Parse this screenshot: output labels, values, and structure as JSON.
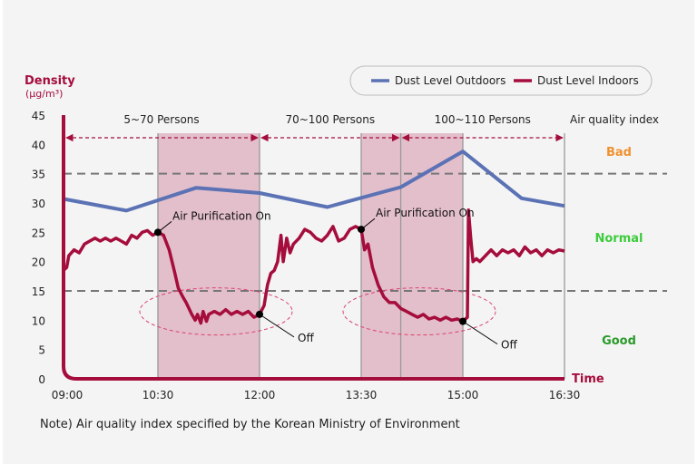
{
  "chart_data": {
    "type": "line",
    "ylabel": "Density",
    "yunit": "(µg/m³)",
    "xlabel": "Time",
    "ylim": [
      0,
      45
    ],
    "yticks": [
      0,
      5,
      10,
      15,
      20,
      25,
      30,
      35,
      40,
      45
    ],
    "xticks": [
      "09:00",
      "10:30",
      "12:00",
      "13:30",
      "15:00",
      "16:30"
    ],
    "legend": {
      "position": "top-right"
    },
    "series": [
      {
        "name": "Dust Level Outdoors",
        "color": "#5b72b5",
        "points": [
          [
            "09:00",
            30.7
          ],
          [
            "10:00",
            28.7
          ],
          [
            "11:04",
            32.6
          ],
          [
            "12:00",
            31.7
          ],
          [
            "13:00",
            29.3
          ],
          [
            "14:05",
            32.7
          ],
          [
            "15:00",
            38.8
          ],
          [
            "15:52",
            30.8
          ],
          [
            "16:30",
            29.5
          ]
        ]
      },
      {
        "name": "Dust Level Indoors",
        "color": "#a50d3c",
        "points": [
          [
            "09:00",
            18.5
          ],
          [
            "09:03",
            19
          ],
          [
            "09:05",
            21
          ],
          [
            "09:10",
            22
          ],
          [
            "09:15",
            21.5
          ],
          [
            "09:20",
            23
          ],
          [
            "09:25",
            23.5
          ],
          [
            "09:30",
            24
          ],
          [
            "09:35",
            23.5
          ],
          [
            "09:40",
            24
          ],
          [
            "09:45",
            23.5
          ],
          [
            "09:50",
            24
          ],
          [
            "09:55",
            23.5
          ],
          [
            "10:00",
            23
          ],
          [
            "10:05",
            24.5
          ],
          [
            "10:10",
            24
          ],
          [
            "10:15",
            25
          ],
          [
            "10:20",
            25.3
          ],
          [
            "10:25",
            24.5
          ],
          [
            "10:30",
            25
          ],
          [
            "10:35",
            24.5
          ],
          [
            "10:40",
            22
          ],
          [
            "10:45",
            18
          ],
          [
            "10:48",
            15.5
          ],
          [
            "10:52",
            14
          ],
          [
            "10:55",
            13
          ],
          [
            "11:00",
            11
          ],
          [
            "11:03",
            10
          ],
          [
            "11:05",
            11
          ],
          [
            "11:08",
            9.5
          ],
          [
            "11:10",
            11.5
          ],
          [
            "11:13",
            9.8
          ],
          [
            "11:15",
            11
          ],
          [
            "11:20",
            11.5
          ],
          [
            "11:25",
            11
          ],
          [
            "11:30",
            11.8
          ],
          [
            "11:35",
            11
          ],
          [
            "11:40",
            11.5
          ],
          [
            "11:45",
            11
          ],
          [
            "11:50",
            11.5
          ],
          [
            "11:55",
            10.5
          ],
          [
            "12:00",
            11
          ],
          [
            "12:04",
            12.5
          ],
          [
            "12:07",
            16
          ],
          [
            "12:10",
            18
          ],
          [
            "12:13",
            18.5
          ],
          [
            "12:16",
            20
          ],
          [
            "12:19",
            24.5
          ],
          [
            "12:21",
            20
          ],
          [
            "12:24",
            24
          ],
          [
            "12:27",
            21.5
          ],
          [
            "12:30",
            23
          ],
          [
            "12:35",
            24
          ],
          [
            "12:40",
            25.5
          ],
          [
            "12:45",
            25
          ],
          [
            "12:50",
            24
          ],
          [
            "12:55",
            23.5
          ],
          [
            "13:00",
            24.5
          ],
          [
            "13:05",
            26
          ],
          [
            "13:10",
            23.5
          ],
          [
            "13:15",
            24
          ],
          [
            "13:20",
            25.5
          ],
          [
            "13:25",
            26
          ],
          [
            "13:30",
            25.5
          ],
          [
            "13:33",
            22
          ],
          [
            "13:36",
            23
          ],
          [
            "13:40",
            19
          ],
          [
            "13:45",
            16
          ],
          [
            "13:50",
            14
          ],
          [
            "13:55",
            13
          ],
          [
            "14:00",
            13
          ],
          [
            "14:05",
            12
          ],
          [
            "14:10",
            11.5
          ],
          [
            "14:15",
            11
          ],
          [
            "14:20",
            10.5
          ],
          [
            "14:25",
            11
          ],
          [
            "14:30",
            10.2
          ],
          [
            "14:35",
            10.5
          ],
          [
            "14:40",
            10
          ],
          [
            "14:45",
            10.5
          ],
          [
            "14:50",
            10
          ],
          [
            "14:55",
            10.2
          ],
          [
            "15:00",
            9.8
          ],
          [
            "15:04",
            10.5
          ],
          [
            "15:05",
            28.8
          ],
          [
            "15:07",
            24
          ],
          [
            "15:09",
            20
          ],
          [
            "15:12",
            20.5
          ],
          [
            "15:15",
            20
          ],
          [
            "15:20",
            21
          ],
          [
            "15:25",
            22
          ],
          [
            "15:30",
            21
          ],
          [
            "15:35",
            22
          ],
          [
            "15:40",
            21.5
          ],
          [
            "15:45",
            22
          ],
          [
            "15:50",
            21
          ],
          [
            "15:55",
            22.5
          ],
          [
            "16:00",
            21.5
          ],
          [
            "16:05",
            22
          ],
          [
            "16:10",
            21
          ],
          [
            "16:15",
            22
          ],
          [
            "16:20",
            21.5
          ],
          [
            "16:25",
            22
          ],
          [
            "16:30",
            21.8
          ]
        ]
      }
    ],
    "thresholds": [
      15,
      35
    ],
    "purifier_on_periods": [
      [
        "10:30",
        "12:00"
      ],
      [
        "13:30",
        "15:00"
      ]
    ],
    "occupancy_periods": [
      {
        "label": "5~70 Persons",
        "from": "09:00",
        "to": "12:00"
      },
      {
        "label": "70~100 Persons",
        "from": "12:00",
        "to": "14:05"
      },
      {
        "label": "100~110 Persons",
        "from": "14:05",
        "to": "16:30"
      }
    ],
    "air_quality_index": {
      "title": "Air quality index",
      "levels": [
        {
          "label": "Bad",
          "color": "#f0912f"
        },
        {
          "label": "Normal",
          "color": "#3ccc3c"
        },
        {
          "label": "Good",
          "color": "#2a9a2a"
        }
      ]
    },
    "annotations": [
      {
        "text": "Air Purification On",
        "at": [
          "10:30",
          25
        ]
      },
      {
        "text": "Off",
        "at": [
          "12:00",
          11
        ]
      },
      {
        "text": "Air Purification On",
        "at": [
          "13:30",
          25.5
        ]
      },
      {
        "text": "Off",
        "at": [
          "15:00",
          9.8
        ]
      }
    ]
  },
  "note": "Note) Air quality index specified by the Korean Ministry of Environment"
}
